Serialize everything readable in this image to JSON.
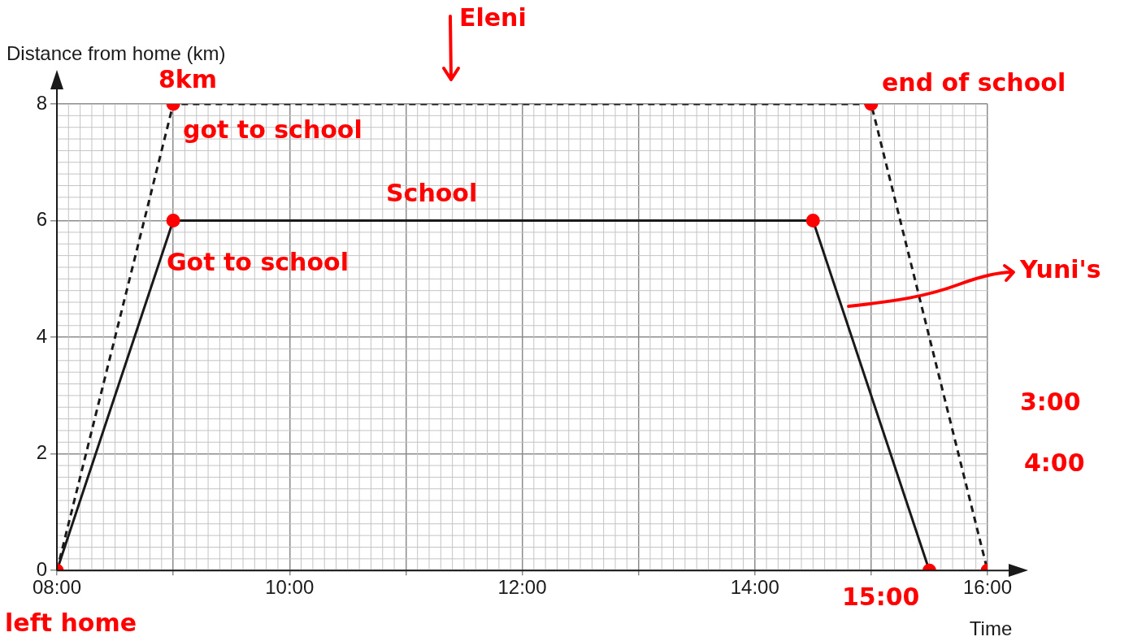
{
  "chart_data": {
    "type": "line",
    "ylabel": "Distance from home (km)",
    "xlabel": "Time",
    "xlim": [
      8,
      16
    ],
    "xticks": [
      {
        "value": 8,
        "label": "08:00"
      },
      {
        "value": 9,
        "label": null
      },
      {
        "value": 10,
        "label": "10:00"
      },
      {
        "value": 11,
        "label": null
      },
      {
        "value": 12,
        "label": "12:00"
      },
      {
        "value": 13,
        "label": null
      },
      {
        "value": 14,
        "label": "14:00"
      },
      {
        "value": 15,
        "label": null
      },
      {
        "value": 16,
        "label": "16:00"
      }
    ],
    "ylim": [
      0,
      8
    ],
    "yticks": [
      0,
      2,
      4,
      6,
      8
    ],
    "grid": true,
    "legend": false,
    "series": [
      {
        "color": "#1a1a1a",
        "line_style": "dashed",
        "marker": "none",
        "x": [
          8,
          9,
          15,
          16
        ],
        "values": [
          0,
          8,
          8,
          0
        ]
      },
      {
        "color": "#1a1a1a",
        "line_style": "solid",
        "marker": "none",
        "x": [
          8,
          9,
          14.5,
          15.5
        ],
        "values": [
          0,
          6,
          6,
          0
        ]
      },
      {
        "type": "scatter",
        "color": "#ff0000",
        "marker": "circle",
        "x": [
          8,
          9,
          15,
          9,
          14.5,
          15.5,
          16
        ],
        "values": [
          0,
          8,
          8,
          6,
          6,
          0,
          0
        ]
      }
    ],
    "annotations": [
      "Eleni",
      "8km",
      "got to school",
      "School",
      "Got to school",
      "end of school",
      "Yuni's",
      "3:00",
      "4:00",
      "15:00",
      "left home"
    ]
  }
}
